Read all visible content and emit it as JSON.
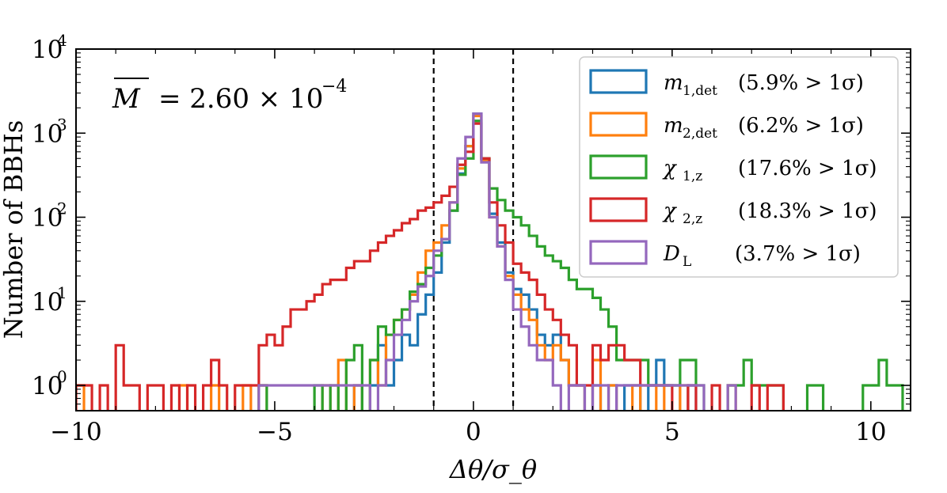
{
  "chart_data": {
    "type": "step-histogram",
    "title": "",
    "xlabel": "Δθ/σ_θ",
    "ylabel": "Number of BBHs",
    "yscale": "log",
    "xlim": [
      -10,
      11
    ],
    "ylim": [
      0.5,
      10000
    ],
    "xticks": [
      {
        "value": -10,
        "label": "−10"
      },
      {
        "value": -5,
        "label": "−5"
      },
      {
        "value": 0,
        "label": "0"
      },
      {
        "value": 5,
        "label": "5"
      },
      {
        "value": 10,
        "label": "10"
      }
    ],
    "yticks": [
      {
        "value": 1,
        "base": "10",
        "exp": "0"
      },
      {
        "value": 10,
        "base": "10",
        "exp": "1"
      },
      {
        "value": 100,
        "base": "10",
        "exp": "2"
      },
      {
        "value": 1000,
        "base": "10",
        "exp": "3"
      },
      {
        "value": 10000,
        "base": "10",
        "exp": "4"
      }
    ],
    "vlines": [
      -1,
      1
    ],
    "annotation": {
      "symbol": "M",
      "text": "= 2.60 × 10",
      "exp": "−4"
    },
    "legend_position": "upper right",
    "series": [
      {
        "name": "m_1,det",
        "label_main": "m",
        "label_sub": "1,det",
        "label_frac": "(5.9% > 1σ)",
        "color": "#1f77b4",
        "bins": [
          [
            -3.0,
            1
          ],
          [
            -2.6,
            1
          ],
          [
            -2.4,
            3
          ],
          [
            -2.2,
            1
          ],
          [
            -2.0,
            2
          ],
          [
            -1.8,
            4
          ],
          [
            -1.6,
            3
          ],
          [
            -1.4,
            7
          ],
          [
            -1.2,
            12
          ],
          [
            -1.0,
            22
          ],
          [
            -0.8,
            50
          ],
          [
            -0.6,
            120
          ],
          [
            -0.4,
            330
          ],
          [
            -0.2,
            700
          ],
          [
            0.0,
            1700
          ],
          [
            0.2,
            500
          ],
          [
            0.4,
            110
          ],
          [
            0.6,
            50
          ],
          [
            0.8,
            22
          ],
          [
            1.0,
            14
          ],
          [
            1.2,
            12
          ],
          [
            1.4,
            8
          ],
          [
            1.6,
            4
          ],
          [
            1.8,
            3
          ],
          [
            2.0,
            4
          ],
          [
            2.2,
            2
          ],
          [
            2.4,
            1
          ],
          [
            2.6,
            1
          ],
          [
            3.0,
            1
          ],
          [
            3.4,
            1
          ],
          [
            3.8,
            1
          ],
          [
            4.0,
            1
          ],
          [
            4.4,
            1
          ],
          [
            4.6,
            2
          ],
          [
            4.8,
            1
          ],
          [
            5.0,
            1
          ],
          [
            5.4,
            1
          ]
        ]
      },
      {
        "name": "m_2,det",
        "label_main": "m",
        "label_sub": "2,det",
        "label_frac": "(6.2% > 1σ)",
        "color": "#ff7f0e",
        "bins": [
          [
            -10.0,
            1
          ],
          [
            -7.4,
            1
          ],
          [
            -6.6,
            1
          ],
          [
            -5.8,
            1
          ],
          [
            -5.4,
            1
          ],
          [
            -3.8,
            1
          ],
          [
            -3.4,
            2
          ],
          [
            -3.0,
            1
          ],
          [
            -2.6,
            2
          ],
          [
            -2.4,
            1
          ],
          [
            -2.2,
            4
          ],
          [
            -2.0,
            6
          ],
          [
            -1.8,
            8
          ],
          [
            -1.6,
            12
          ],
          [
            -1.4,
            22
          ],
          [
            -1.2,
            40
          ],
          [
            -1.0,
            50
          ],
          [
            -0.8,
            80
          ],
          [
            -0.6,
            150
          ],
          [
            -0.4,
            380
          ],
          [
            -0.2,
            700
          ],
          [
            0.0,
            1600
          ],
          [
            0.2,
            480
          ],
          [
            0.4,
            100
          ],
          [
            0.6,
            45
          ],
          [
            0.8,
            20
          ],
          [
            1.0,
            12
          ],
          [
            1.2,
            8
          ],
          [
            1.4,
            6
          ],
          [
            1.6,
            3
          ],
          [
            1.8,
            2
          ],
          [
            2.0,
            3
          ],
          [
            2.2,
            2
          ],
          [
            2.4,
            1
          ],
          [
            2.6,
            1
          ],
          [
            3.0,
            2
          ],
          [
            3.4,
            1
          ],
          [
            4.0,
            1
          ],
          [
            4.6,
            1
          ],
          [
            5.2,
            1
          ],
          [
            6.4,
            1
          ]
        ]
      },
      {
        "name": "χ_1,z",
        "label_main": "χ",
        "label_sub": "1,z",
        "label_frac": "(17.6% > 1σ)",
        "color": "#2ca02c",
        "bins": [
          [
            -5.4,
            1
          ],
          [
            -4.0,
            1
          ],
          [
            -3.6,
            1
          ],
          [
            -3.2,
            2
          ],
          [
            -3.0,
            3
          ],
          [
            -2.6,
            2
          ],
          [
            -2.4,
            5
          ],
          [
            -2.2,
            4
          ],
          [
            -2.0,
            6
          ],
          [
            -1.8,
            8
          ],
          [
            -1.6,
            13
          ],
          [
            -1.4,
            16
          ],
          [
            -1.2,
            25
          ],
          [
            -1.0,
            35
          ],
          [
            -0.8,
            55
          ],
          [
            -0.6,
            120
          ],
          [
            -0.4,
            320
          ],
          [
            -0.2,
            500
          ],
          [
            0.0,
            1400
          ],
          [
            0.2,
            500
          ],
          [
            0.4,
            220
          ],
          [
            0.6,
            160
          ],
          [
            0.8,
            120
          ],
          [
            1.0,
            100
          ],
          [
            1.2,
            80
          ],
          [
            1.4,
            60
          ],
          [
            1.6,
            45
          ],
          [
            1.8,
            35
          ],
          [
            2.0,
            30
          ],
          [
            2.2,
            25
          ],
          [
            2.4,
            18
          ],
          [
            2.6,
            14
          ],
          [
            2.8,
            14
          ],
          [
            3.0,
            11
          ],
          [
            3.2,
            8
          ],
          [
            3.4,
            5
          ],
          [
            3.6,
            2
          ],
          [
            3.8,
            2
          ],
          [
            4.0,
            2
          ],
          [
            4.2,
            2
          ],
          [
            4.4,
            1
          ],
          [
            4.6,
            1
          ],
          [
            4.8,
            1
          ],
          [
            5.0,
            1
          ],
          [
            5.2,
            2
          ],
          [
            5.4,
            2
          ],
          [
            5.6,
            1
          ],
          [
            6.4,
            1
          ],
          [
            6.6,
            1
          ],
          [
            6.8,
            2
          ],
          [
            7.0,
            1
          ],
          [
            7.2,
            1
          ],
          [
            7.4,
            1
          ],
          [
            7.6,
            1
          ],
          [
            8.4,
            1
          ],
          [
            8.6,
            1
          ],
          [
            9.8,
            1
          ],
          [
            10.0,
            1
          ],
          [
            10.2,
            2
          ],
          [
            10.4,
            1
          ],
          [
            10.6,
            1
          ]
        ]
      },
      {
        "name": "χ_2,z",
        "label_main": "χ",
        "label_sub": "2,z",
        "label_frac": "(18.3% > 1σ)",
        "color": "#d62728",
        "bins": [
          [
            -10.0,
            1
          ],
          [
            -9.8,
            1
          ],
          [
            -9.4,
            1
          ],
          [
            -9.0,
            3
          ],
          [
            -8.8,
            1
          ],
          [
            -8.6,
            1
          ],
          [
            -8.2,
            1
          ],
          [
            -8.0,
            1
          ],
          [
            -7.6,
            1
          ],
          [
            -7.2,
            1
          ],
          [
            -6.8,
            1
          ],
          [
            -6.6,
            2
          ],
          [
            -6.4,
            1
          ],
          [
            -6.0,
            1
          ],
          [
            -5.8,
            1
          ],
          [
            -5.6,
            1
          ],
          [
            -5.4,
            3
          ],
          [
            -5.2,
            4
          ],
          [
            -5.0,
            3
          ],
          [
            -4.8,
            5
          ],
          [
            -4.6,
            8
          ],
          [
            -4.4,
            8
          ],
          [
            -4.2,
            10
          ],
          [
            -4.0,
            12
          ],
          [
            -3.8,
            16
          ],
          [
            -3.6,
            18
          ],
          [
            -3.4,
            18
          ],
          [
            -3.2,
            25
          ],
          [
            -3.0,
            30
          ],
          [
            -2.8,
            30
          ],
          [
            -2.6,
            40
          ],
          [
            -2.4,
            50
          ],
          [
            -2.2,
            60
          ],
          [
            -2.0,
            70
          ],
          [
            -1.8,
            85
          ],
          [
            -1.6,
            95
          ],
          [
            -1.4,
            120
          ],
          [
            -1.2,
            130
          ],
          [
            -1.0,
            150
          ],
          [
            -0.8,
            180
          ],
          [
            -0.6,
            230
          ],
          [
            -0.4,
            420
          ],
          [
            -0.2,
            600
          ],
          [
            0.0,
            1300
          ],
          [
            0.2,
            500
          ],
          [
            0.4,
            150
          ],
          [
            0.6,
            80
          ],
          [
            0.8,
            50
          ],
          [
            1.0,
            28
          ],
          [
            1.2,
            22
          ],
          [
            1.4,
            18
          ],
          [
            1.6,
            12
          ],
          [
            1.8,
            8
          ],
          [
            2.0,
            6
          ],
          [
            2.2,
            4
          ],
          [
            2.4,
            3
          ],
          [
            2.6,
            1
          ],
          [
            2.8,
            1
          ],
          [
            3.0,
            3
          ],
          [
            3.2,
            2
          ],
          [
            3.4,
            3
          ],
          [
            3.6,
            3
          ],
          [
            3.8,
            2
          ],
          [
            4.0,
            2
          ],
          [
            4.2,
            1
          ],
          [
            4.4,
            1
          ],
          [
            4.6,
            1
          ],
          [
            4.8,
            1
          ],
          [
            5.4,
            1
          ],
          [
            6.0,
            1
          ],
          [
            7.0,
            1
          ],
          [
            7.4,
            1
          ],
          [
            7.6,
            1
          ]
        ]
      },
      {
        "name": "D_L",
        "label_main": "D",
        "label_sub": "L",
        "label_frac": "(3.7% > 1σ)",
        "color": "#9467bd",
        "bins": [
          [
            -5.4,
            1
          ],
          [
            -5.2,
            1
          ],
          [
            -5.0,
            1
          ],
          [
            -4.8,
            1
          ],
          [
            -4.6,
            1
          ],
          [
            -4.4,
            1
          ],
          [
            -4.2,
            1
          ],
          [
            -4.0,
            1
          ],
          [
            -3.8,
            1
          ],
          [
            -3.6,
            1
          ],
          [
            -3.4,
            1
          ],
          [
            -3.2,
            1
          ],
          [
            -3.0,
            1
          ],
          [
            -2.8,
            1
          ],
          [
            -2.4,
            1
          ],
          [
            -2.2,
            2
          ],
          [
            -2.0,
            4
          ],
          [
            -1.8,
            6
          ],
          [
            -1.6,
            10
          ],
          [
            -1.4,
            15
          ],
          [
            -1.2,
            20
          ],
          [
            -1.0,
            40
          ],
          [
            -0.8,
            55
          ],
          [
            -0.6,
            150
          ],
          [
            -0.4,
            500
          ],
          [
            -0.2,
            900
          ],
          [
            0.0,
            1700
          ],
          [
            0.2,
            450
          ],
          [
            0.4,
            100
          ],
          [
            0.6,
            45
          ],
          [
            0.8,
            18
          ],
          [
            1.0,
            8
          ],
          [
            1.2,
            5
          ],
          [
            1.4,
            3
          ],
          [
            1.6,
            2
          ],
          [
            1.8,
            2
          ],
          [
            2.0,
            1
          ],
          [
            2.4,
            1
          ],
          [
            2.6,
            1
          ],
          [
            3.0,
            1
          ],
          [
            3.2,
            1
          ],
          [
            3.6,
            1
          ],
          [
            3.8,
            1
          ],
          [
            4.0,
            1
          ],
          [
            4.2,
            1
          ],
          [
            4.4,
            1
          ],
          [
            4.6,
            1
          ],
          [
            4.8,
            1
          ],
          [
            5.0,
            1
          ],
          [
            5.2,
            1
          ],
          [
            5.4,
            1
          ],
          [
            5.6,
            1
          ],
          [
            6.4,
            1
          ]
        ]
      }
    ]
  }
}
